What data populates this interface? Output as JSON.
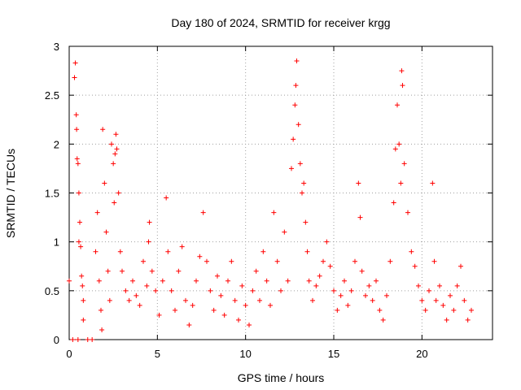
{
  "chart_data": {
    "type": "scatter",
    "title": "Day 180 of 2024, SRMTID for receiver krgg",
    "xlabel": "GPS time / hours",
    "ylabel": "SRMTID / TECUs",
    "xlim": [
      0,
      24
    ],
    "ylim": [
      0,
      3
    ],
    "x_ticks": [
      0,
      5,
      10,
      15,
      20
    ],
    "y_ticks": [
      0,
      0.5,
      1,
      1.5,
      2,
      2.5,
      3
    ],
    "x_tick_labels": [
      "0",
      "5",
      "10",
      "15",
      "20"
    ],
    "y_tick_labels": [
      "0",
      "0.5",
      "1",
      "1.5",
      "2",
      "2.5",
      "3"
    ],
    "grid": true,
    "marker": "plus",
    "series": [
      {
        "name": "SRMTID",
        "color": "#ff0000",
        "points": [
          [
            0.0,
            0.6
          ],
          [
            0.2,
            0.0
          ],
          [
            0.3,
            2.68
          ],
          [
            0.35,
            2.83
          ],
          [
            0.4,
            2.3
          ],
          [
            0.42,
            2.15
          ],
          [
            0.45,
            1.85
          ],
          [
            0.5,
            1.8
          ],
          [
            0.55,
            1.5
          ],
          [
            0.6,
            1.2
          ],
          [
            0.55,
            1.0
          ],
          [
            0.65,
            0.95
          ],
          [
            0.7,
            0.65
          ],
          [
            0.75,
            0.55
          ],
          [
            0.8,
            0.4
          ],
          [
            0.8,
            0.2
          ],
          [
            0.5,
            0.0
          ],
          [
            1.05,
            0.0
          ],
          [
            1.3,
            0.0
          ],
          [
            1.5,
            0.9
          ],
          [
            1.6,
            1.3
          ],
          [
            1.7,
            0.6
          ],
          [
            1.8,
            0.3
          ],
          [
            1.85,
            0.1
          ],
          [
            1.9,
            2.15
          ],
          [
            2.0,
            1.6
          ],
          [
            2.1,
            1.1
          ],
          [
            2.2,
            0.7
          ],
          [
            2.3,
            0.4
          ],
          [
            2.4,
            2.0
          ],
          [
            2.5,
            1.8
          ],
          [
            2.55,
            1.4
          ],
          [
            2.6,
            1.9
          ],
          [
            2.65,
            2.1
          ],
          [
            2.7,
            1.95
          ],
          [
            2.8,
            1.5
          ],
          [
            2.9,
            0.9
          ],
          [
            3.0,
            0.7
          ],
          [
            3.2,
            0.5
          ],
          [
            3.4,
            0.4
          ],
          [
            3.6,
            0.6
          ],
          [
            3.8,
            0.45
          ],
          [
            4.0,
            0.35
          ],
          [
            4.2,
            0.8
          ],
          [
            4.4,
            0.55
          ],
          [
            4.5,
            1.0
          ],
          [
            4.55,
            1.2
          ],
          [
            4.7,
            0.7
          ],
          [
            4.9,
            0.5
          ],
          [
            5.1,
            0.25
          ],
          [
            5.3,
            0.6
          ],
          [
            5.5,
            1.45
          ],
          [
            5.6,
            0.9
          ],
          [
            5.8,
            0.5
          ],
          [
            6.0,
            0.3
          ],
          [
            6.2,
            0.7
          ],
          [
            6.4,
            0.95
          ],
          [
            6.6,
            0.4
          ],
          [
            6.8,
            0.15
          ],
          [
            7.0,
            0.35
          ],
          [
            7.2,
            0.6
          ],
          [
            7.4,
            0.85
          ],
          [
            7.6,
            1.3
          ],
          [
            7.8,
            0.8
          ],
          [
            8.0,
            0.5
          ],
          [
            8.2,
            0.3
          ],
          [
            8.4,
            0.65
          ],
          [
            8.6,
            0.45
          ],
          [
            8.8,
            0.25
          ],
          [
            9.0,
            0.6
          ],
          [
            9.2,
            0.8
          ],
          [
            9.4,
            0.4
          ],
          [
            9.6,
            0.2
          ],
          [
            9.8,
            0.55
          ],
          [
            10.0,
            0.35
          ],
          [
            10.2,
            0.15
          ],
          [
            10.4,
            0.5
          ],
          [
            10.6,
            0.7
          ],
          [
            10.8,
            0.4
          ],
          [
            11.0,
            0.9
          ],
          [
            11.2,
            0.6
          ],
          [
            11.4,
            0.35
          ],
          [
            11.6,
            1.3
          ],
          [
            11.8,
            0.8
          ],
          [
            12.0,
            0.5
          ],
          [
            12.2,
            1.1
          ],
          [
            12.4,
            0.6
          ],
          [
            12.6,
            1.75
          ],
          [
            12.7,
            2.05
          ],
          [
            12.8,
            2.4
          ],
          [
            12.85,
            2.6
          ],
          [
            12.9,
            2.85
          ],
          [
            13.0,
            2.2
          ],
          [
            13.1,
            1.8
          ],
          [
            13.2,
            1.5
          ],
          [
            13.3,
            1.6
          ],
          [
            13.4,
            1.2
          ],
          [
            13.5,
            0.9
          ],
          [
            13.6,
            0.6
          ],
          [
            13.8,
            0.4
          ],
          [
            14.0,
            0.55
          ],
          [
            14.2,
            0.65
          ],
          [
            14.4,
            0.8
          ],
          [
            14.6,
            1.0
          ],
          [
            14.8,
            0.75
          ],
          [
            15.0,
            0.5
          ],
          [
            15.2,
            0.3
          ],
          [
            15.4,
            0.45
          ],
          [
            15.6,
            0.6
          ],
          [
            15.8,
            0.35
          ],
          [
            16.0,
            0.5
          ],
          [
            16.2,
            0.8
          ],
          [
            16.4,
            1.6
          ],
          [
            16.5,
            1.25
          ],
          [
            16.6,
            0.7
          ],
          [
            16.8,
            0.45
          ],
          [
            17.0,
            0.55
          ],
          [
            17.2,
            0.4
          ],
          [
            17.4,
            0.6
          ],
          [
            17.6,
            0.3
          ],
          [
            17.8,
            0.2
          ],
          [
            18.0,
            0.45
          ],
          [
            18.2,
            0.8
          ],
          [
            18.4,
            1.4
          ],
          [
            18.5,
            1.95
          ],
          [
            18.6,
            2.4
          ],
          [
            18.7,
            2.0
          ],
          [
            18.8,
            1.6
          ],
          [
            18.85,
            2.75
          ],
          [
            18.9,
            2.6
          ],
          [
            19.0,
            1.8
          ],
          [
            19.2,
            1.3
          ],
          [
            19.4,
            0.9
          ],
          [
            19.6,
            0.75
          ],
          [
            19.8,
            0.55
          ],
          [
            20.0,
            0.4
          ],
          [
            20.2,
            0.3
          ],
          [
            20.4,
            0.5
          ],
          [
            20.6,
            1.6
          ],
          [
            20.7,
            0.8
          ],
          [
            20.8,
            0.4
          ],
          [
            21.0,
            0.55
          ],
          [
            21.2,
            0.35
          ],
          [
            21.4,
            0.2
          ],
          [
            21.6,
            0.45
          ],
          [
            21.8,
            0.3
          ],
          [
            22.0,
            0.55
          ],
          [
            22.2,
            0.75
          ],
          [
            22.4,
            0.4
          ],
          [
            22.6,
            0.2
          ],
          [
            22.8,
            0.3
          ]
        ]
      }
    ]
  }
}
